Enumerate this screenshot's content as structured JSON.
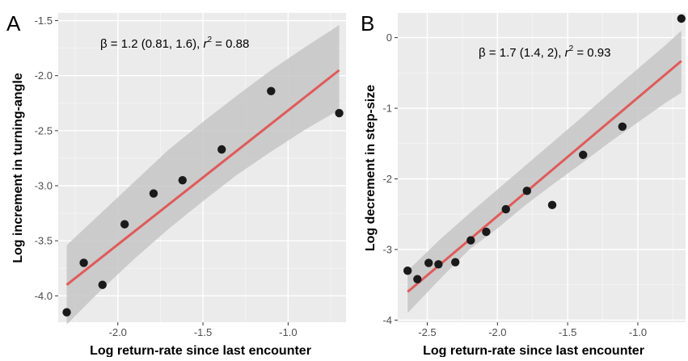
{
  "colors": {
    "panel_bg": "#ebebeb",
    "grid_major": "#ffffff",
    "grid_minor": "#f5f5f5",
    "point": "#1a1a1a",
    "fit_line": "#e05a5a",
    "ribbon": "#c6c6c6",
    "tick_text": "#4d4d4d"
  },
  "chart_data": [
    {
      "type": "scatter",
      "panel_label": "A",
      "annotation": {
        "prefix": "β = 1.2 (0.81,  1.6),  ",
        "r2_symbol": "r",
        "r2_exponent": "2",
        "r2_value": " = 0.88"
      },
      "xlabel": "Log return-rate since last encounter",
      "ylabel": "Log increment in turning-angle",
      "xlim": [
        -2.35,
        -0.66
      ],
      "ylim": [
        -4.24,
        -1.43
      ],
      "x_ticks": [
        -2.0,
        -1.5,
        -1.0
      ],
      "x_tick_labels": [
        "-2.0",
        "-1.5",
        "-1.0"
      ],
      "y_ticks": [
        -4.0,
        -3.5,
        -3.0,
        -2.5,
        -2.0,
        -1.5
      ],
      "y_tick_labels": [
        "-4.0",
        "-3.5",
        "-3.0",
        "-2.5",
        "-2.0",
        "-1.5"
      ],
      "grid": true,
      "points": {
        "x": [
          -2.3,
          -2.2,
          -2.09,
          -1.96,
          -1.79,
          -1.62,
          -1.39,
          -1.1,
          -0.7
        ],
        "y": [
          -4.15,
          -3.7,
          -3.9,
          -3.35,
          -3.07,
          -2.95,
          -2.67,
          -2.14,
          -2.34
        ]
      },
      "fit": {
        "x": [
          -2.3,
          -0.7
        ],
        "y": [
          -3.9,
          -1.95
        ]
      },
      "ribbon": {
        "x": [
          -2.3,
          -2.1,
          -1.9,
          -1.7,
          -1.5,
          -1.3,
          -1.1,
          -0.9,
          -0.7
        ],
        "lower": [
          -4.26,
          -3.95,
          -3.66,
          -3.39,
          -3.14,
          -2.9,
          -2.69,
          -2.49,
          -2.31
        ],
        "upper": [
          -3.54,
          -3.25,
          -2.96,
          -2.67,
          -2.42,
          -2.18,
          -1.95,
          -1.74,
          -1.54
        ]
      }
    },
    {
      "type": "scatter",
      "panel_label": "B",
      "annotation": {
        "prefix": "β = 1.7 (1.4,  2),  ",
        "r2_symbol": "r",
        "r2_exponent": "2",
        "r2_value": " = 0.93"
      },
      "xlabel": "Log return-rate since last encounter",
      "ylabel": "Log decrement in step-size",
      "xlim": [
        -2.71,
        -0.66
      ],
      "ylim": [
        -4.03,
        0.35
      ],
      "x_ticks": [
        -2.5,
        -2.0,
        -1.5,
        -1.0
      ],
      "x_tick_labels": [
        "-2.5",
        "-2.0",
        "-1.5",
        "-1.0"
      ],
      "y_ticks": [
        -4,
        -3,
        -2,
        -1,
        0
      ],
      "y_tick_labels": [
        "-4",
        "-3",
        "-2",
        "-1",
        "0"
      ],
      "grid": true,
      "points": {
        "x": [
          -2.64,
          -2.57,
          -2.49,
          -2.42,
          -2.3,
          -2.19,
          -2.08,
          -1.94,
          -1.79,
          -1.61,
          -1.39,
          -1.11,
          -0.69
        ],
        "y": [
          -3.3,
          -3.42,
          -3.19,
          -3.21,
          -3.18,
          -2.87,
          -2.75,
          -2.43,
          -2.17,
          -2.37,
          -1.66,
          -1.26,
          0.27
        ]
      },
      "fit": {
        "x": [
          -2.64,
          -0.69
        ],
        "y": [
          -3.6,
          -0.33
        ]
      },
      "ribbon": {
        "x": [
          -2.64,
          -2.4,
          -2.2,
          -2.0,
          -1.8,
          -1.6,
          -1.4,
          -1.2,
          -1.0,
          -0.8,
          -0.69
        ],
        "lower": [
          -3.9,
          -3.4,
          -3.0,
          -2.7,
          -2.37,
          -2.07,
          -1.78,
          -1.48,
          -1.2,
          -0.92,
          -0.78
        ],
        "upper": [
          -3.3,
          -2.84,
          -2.49,
          -2.15,
          -1.81,
          -1.47,
          -1.13,
          -0.78,
          -0.44,
          -0.1,
          0.1
        ]
      }
    }
  ]
}
